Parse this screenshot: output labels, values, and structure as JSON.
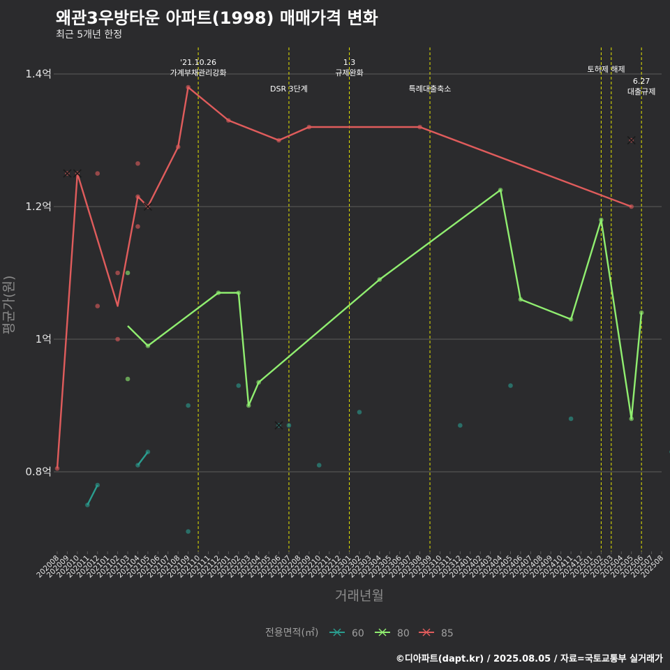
{
  "header": {
    "title": "왜관3우방타운 아파트(1998) 매매가격 변화",
    "subtitle": "최근 5개년 한정"
  },
  "caption": "©디아파트(dapt.kr) / 2025.08.05 / 자료=국토교통부 실거래가",
  "colors": {
    "background": "#2b2b2d",
    "grid": "#5c5c5c",
    "event_line": "#e6e600",
    "s60": "#2a9d8f",
    "s80": "#90ee70",
    "s85": "#e05c5c"
  },
  "chart_data": {
    "type": "line",
    "xlabel": "거래년월",
    "ylabel": "평균가(원)",
    "x_categories": [
      "202008",
      "202009",
      "202010",
      "202011",
      "202012",
      "202101",
      "202102",
      "202103",
      "202104",
      "202105",
      "202106",
      "202107",
      "202108",
      "202109",
      "202110",
      "202111",
      "202112",
      "202201",
      "202202",
      "202203",
      "202204",
      "202205",
      "202206",
      "202207",
      "202208",
      "202209",
      "202210",
      "202211",
      "202212",
      "202301",
      "202302",
      "202303",
      "202304",
      "202305",
      "202306",
      "202307",
      "202308",
      "202309",
      "202310",
      "202311",
      "202312",
      "202401",
      "202402",
      "202403",
      "202404",
      "202405",
      "202406",
      "202407",
      "202408",
      "202409",
      "202410",
      "202411",
      "202412",
      "202501",
      "202502",
      "202503",
      "202504",
      "202505",
      "202506",
      "202507",
      "202508"
    ],
    "y_ticks": [
      {
        "value": 0.8,
        "label": "0.8억"
      },
      {
        "value": 1.0,
        "label": "1억"
      },
      {
        "value": 1.2,
        "label": "1.2억"
      },
      {
        "value": 1.4,
        "label": "1.4억"
      }
    ],
    "ylim": [
      0.68,
      1.44
    ],
    "grid": true,
    "legend": {
      "title": "전용면적(㎡)",
      "position": "bottom",
      "items": [
        {
          "key": "s60",
          "label": "60"
        },
        {
          "key": "s80",
          "label": "80"
        },
        {
          "key": "s85",
          "label": "85"
        }
      ]
    },
    "events": [
      {
        "x": 14,
        "label_lines": [
          "'21.10.26",
          "가계부채관리강화"
        ],
        "label_row": 0
      },
      {
        "x": 23,
        "label_lines": [
          "DSR 3단계"
        ],
        "label_row": 2
      },
      {
        "x": 29,
        "label_lines": [
          "1.3",
          "규제완화"
        ],
        "label_row": 0
      },
      {
        "x": 37,
        "label_lines": [
          "특례대출축소"
        ],
        "label_row": 2
      },
      {
        "x": 54,
        "label_lines": [
          "토허제 해제"
        ],
        "label_row": 1,
        "label_x": 54.5
      },
      {
        "x": 55,
        "label_lines": [],
        "label_row": 1
      },
      {
        "x": 58,
        "label_lines": [
          "6.27",
          "대출규제"
        ],
        "label_row": 1.8
      }
    ],
    "series": [
      {
        "key": "s85",
        "name": "85",
        "line": [
          [
            0,
            0.805
          ],
          [
            2,
            1.25
          ],
          [
            6,
            1.05
          ],
          [
            8,
            1.215
          ],
          [
            9,
            1.2
          ],
          [
            12,
            1.29
          ],
          [
            13,
            1.38
          ],
          [
            17,
            1.33
          ],
          [
            22,
            1.3
          ],
          [
            25,
            1.32
          ],
          [
            36,
            1.32
          ],
          [
            57,
            1.2
          ]
        ],
        "points": [
          [
            0,
            0.805
          ],
          [
            1,
            1.25
          ],
          [
            2,
            1.25
          ],
          [
            4,
            1.25
          ],
          [
            4,
            1.05
          ],
          [
            6,
            1.1
          ],
          [
            6,
            1.0
          ],
          [
            8,
            1.265
          ],
          [
            8,
            1.17
          ],
          [
            8,
            1.215
          ],
          [
            9,
            1.2
          ],
          [
            12,
            1.29
          ],
          [
            13,
            1.38
          ],
          [
            17,
            1.33
          ],
          [
            22,
            1.3
          ],
          [
            25,
            1.32
          ],
          [
            36,
            1.32
          ],
          [
            57,
            1.2
          ],
          [
            57,
            1.3
          ]
        ],
        "crosses": [
          [
            1,
            1.25
          ],
          [
            2,
            1.25
          ],
          [
            9,
            1.2
          ],
          [
            57,
            1.3
          ]
        ]
      },
      {
        "key": "s80",
        "name": "80",
        "line": [
          [
            7,
            1.02
          ],
          [
            9,
            0.99
          ],
          [
            16,
            1.07
          ],
          [
            18,
            1.07
          ],
          [
            19,
            0.9
          ],
          [
            20,
            0.935
          ],
          [
            32,
            1.09
          ],
          [
            44,
            1.225
          ],
          [
            46,
            1.06
          ],
          [
            51,
            1.03
          ],
          [
            54,
            1.18
          ],
          [
            57,
            0.88
          ],
          [
            58,
            1.04
          ]
        ],
        "points": [
          [
            7,
            1.1
          ],
          [
            7,
            0.94
          ],
          [
            9,
            0.99
          ],
          [
            16,
            1.07
          ],
          [
            18,
            1.07
          ],
          [
            19,
            0.9
          ],
          [
            20,
            0.935
          ],
          [
            32,
            1.09
          ],
          [
            44,
            1.225
          ],
          [
            46,
            1.06
          ],
          [
            51,
            1.03
          ],
          [
            54,
            1.18
          ],
          [
            57,
            0.88
          ],
          [
            58,
            1.04
          ]
        ],
        "crosses": []
      },
      {
        "key": "s60",
        "name": "60",
        "lines": [
          [
            [
              3,
              0.75
            ],
            [
              4,
              0.78
            ]
          ],
          [
            [
              8,
              0.81
            ],
            [
              9,
              0.83
            ]
          ]
        ],
        "points": [
          [
            3,
            0.75
          ],
          [
            4,
            0.78
          ],
          [
            8,
            0.81
          ],
          [
            9,
            0.83
          ],
          [
            13,
            0.9
          ],
          [
            13,
            0.71
          ],
          [
            18,
            0.93
          ],
          [
            22,
            0.87
          ],
          [
            23,
            0.87
          ],
          [
            26,
            0.81
          ],
          [
            30,
            0.89
          ],
          [
            40,
            0.87
          ],
          [
            45,
            0.93
          ],
          [
            51,
            0.88
          ],
          [
            61,
            0.83
          ]
        ],
        "crosses": [
          [
            22,
            0.87
          ]
        ]
      }
    ]
  }
}
